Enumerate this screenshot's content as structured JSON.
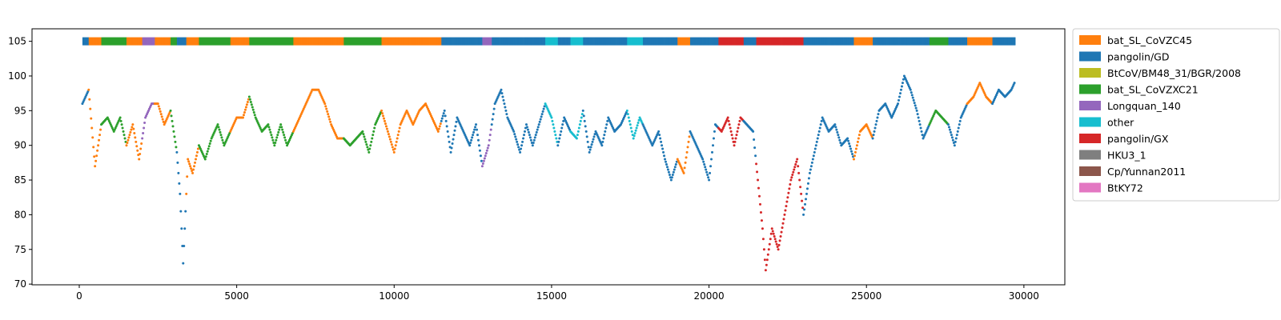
{
  "chart_data": {
    "type": "scatter",
    "title": "",
    "xlabel": "",
    "ylabel": "",
    "xlim": [
      -1500,
      31300
    ],
    "ylim": [
      69.9,
      106.8
    ],
    "xticks": [
      0,
      5000,
      10000,
      15000,
      20000,
      25000,
      30000
    ],
    "yticks": [
      70,
      75,
      80,
      85,
      90,
      95,
      100,
      105
    ],
    "grid": false,
    "legend_position": "outside-right",
    "annotation_bar_y": 105,
    "series": [
      {
        "name": "bat_SL_CoVZC45",
        "color": "#ff7f0e"
      },
      {
        "name": "pangolin/GD",
        "color": "#1f77b4"
      },
      {
        "name": "BtCoV/BM48_31/BGR/2008",
        "color": "#bcbd22"
      },
      {
        "name": "bat_SL_CoVZXC21",
        "color": "#2ca02c"
      },
      {
        "name": "Longquan_140",
        "color": "#9467bd"
      },
      {
        "name": "other",
        "color": "#17becf"
      },
      {
        "name": "pangolin/GX",
        "color": "#d62728"
      },
      {
        "name": "HKU3_1",
        "color": "#7f7f7f"
      },
      {
        "name": "Cp/Yunnan2011",
        "color": "#8c564b"
      },
      {
        "name": "BtKY72",
        "color": "#e377c2"
      }
    ],
    "profile": [
      [
        100,
        96
      ],
      [
        300,
        98
      ],
      [
        500,
        87
      ],
      [
        700,
        93
      ],
      [
        900,
        94
      ],
      [
        1100,
        92
      ],
      [
        1300,
        94
      ],
      [
        1500,
        90
      ],
      [
        1700,
        93
      ],
      [
        1900,
        88
      ],
      [
        2100,
        94
      ],
      [
        2300,
        96
      ],
      [
        2500,
        96
      ],
      [
        2700,
        93
      ],
      [
        2900,
        95
      ],
      [
        3100,
        89
      ],
      [
        3200,
        83
      ],
      [
        3300,
        73
      ],
      [
        3450,
        88
      ],
      [
        3600,
        86
      ],
      [
        3800,
        90
      ],
      [
        4000,
        88
      ],
      [
        4200,
        91
      ],
      [
        4400,
        93
      ],
      [
        4600,
        90
      ],
      [
        4800,
        92
      ],
      [
        5000,
        94
      ],
      [
        5200,
        94
      ],
      [
        5400,
        97
      ],
      [
        5600,
        94
      ],
      [
        5800,
        92
      ],
      [
        6000,
        93
      ],
      [
        6200,
        90
      ],
      [
        6400,
        93
      ],
      [
        6600,
        90
      ],
      [
        6800,
        92
      ],
      [
        7000,
        94
      ],
      [
        7200,
        96
      ],
      [
        7400,
        98
      ],
      [
        7600,
        98
      ],
      [
        7800,
        96
      ],
      [
        8000,
        93
      ],
      [
        8200,
        91
      ],
      [
        8400,
        91
      ],
      [
        8600,
        90
      ],
      [
        8800,
        91
      ],
      [
        9000,
        92
      ],
      [
        9200,
        89
      ],
      [
        9400,
        93
      ],
      [
        9600,
        95
      ],
      [
        9800,
        92
      ],
      [
        10000,
        89
      ],
      [
        10200,
        93
      ],
      [
        10400,
        95
      ],
      [
        10600,
        93
      ],
      [
        10800,
        95
      ],
      [
        11000,
        96
      ],
      [
        11200,
        94
      ],
      [
        11400,
        92
      ],
      [
        11600,
        95
      ],
      [
        11800,
        89
      ],
      [
        12000,
        94
      ],
      [
        12200,
        92
      ],
      [
        12400,
        90
      ],
      [
        12600,
        93
      ],
      [
        12800,
        87
      ],
      [
        13000,
        90
      ],
      [
        13200,
        96
      ],
      [
        13400,
        98
      ],
      [
        13600,
        94
      ],
      [
        13800,
        92
      ],
      [
        14000,
        89
      ],
      [
        14200,
        93
      ],
      [
        14400,
        90
      ],
      [
        14600,
        93
      ],
      [
        14800,
        96
      ],
      [
        15000,
        94
      ],
      [
        15200,
        90
      ],
      [
        15400,
        94
      ],
      [
        15600,
        92
      ],
      [
        15800,
        91
      ],
      [
        16000,
        95
      ],
      [
        16200,
        89
      ],
      [
        16400,
        92
      ],
      [
        16600,
        90
      ],
      [
        16800,
        94
      ],
      [
        17000,
        92
      ],
      [
        17200,
        93
      ],
      [
        17400,
        95
      ],
      [
        17600,
        91
      ],
      [
        17800,
        94
      ],
      [
        18000,
        92
      ],
      [
        18200,
        90
      ],
      [
        18400,
        92
      ],
      [
        18600,
        88
      ],
      [
        18800,
        85
      ],
      [
        19000,
        88
      ],
      [
        19200,
        86
      ],
      [
        19400,
        92
      ],
      [
        19600,
        90
      ],
      [
        19800,
        88
      ],
      [
        20000,
        85
      ],
      [
        20200,
        93
      ],
      [
        20400,
        92
      ],
      [
        20600,
        94
      ],
      [
        20800,
        90
      ],
      [
        21000,
        94
      ],
      [
        21200,
        93
      ],
      [
        21400,
        92
      ],
      [
        21700,
        78
      ],
      [
        21800,
        72
      ],
      [
        22000,
        78
      ],
      [
        22200,
        75
      ],
      [
        22400,
        80
      ],
      [
        22600,
        85
      ],
      [
        22800,
        88
      ],
      [
        23000,
        80
      ],
      [
        23200,
        86
      ],
      [
        23400,
        90
      ],
      [
        23600,
        94
      ],
      [
        23800,
        92
      ],
      [
        24000,
        93
      ],
      [
        24200,
        90
      ],
      [
        24400,
        91
      ],
      [
        24600,
        88
      ],
      [
        24800,
        92
      ],
      [
        25000,
        93
      ],
      [
        25200,
        91
      ],
      [
        25400,
        95
      ],
      [
        25600,
        96
      ],
      [
        25800,
        94
      ],
      [
        26000,
        96
      ],
      [
        26200,
        100
      ],
      [
        26400,
        98
      ],
      [
        26600,
        95
      ],
      [
        26800,
        91
      ],
      [
        27000,
        93
      ],
      [
        27200,
        95
      ],
      [
        27400,
        94
      ],
      [
        27600,
        93
      ],
      [
        27800,
        90
      ],
      [
        28000,
        94
      ],
      [
        28200,
        96
      ],
      [
        28400,
        97
      ],
      [
        28600,
        99
      ],
      [
        28800,
        97
      ],
      [
        29000,
        96
      ],
      [
        29200,
        98
      ],
      [
        29400,
        97
      ],
      [
        29600,
        98
      ],
      [
        29700,
        99
      ]
    ],
    "segments": [
      [
        0,
        300,
        "pangolin/GD"
      ],
      [
        300,
        700,
        "bat_SL_CoVZC45"
      ],
      [
        700,
        1500,
        "bat_SL_CoVZXC21"
      ],
      [
        1500,
        2000,
        "bat_SL_CoVZC45"
      ],
      [
        2000,
        2400,
        "Longquan_140"
      ],
      [
        2400,
        2900,
        "bat_SL_CoVZC45"
      ],
      [
        2900,
        3100,
        "bat_SL_CoVZXC21"
      ],
      [
        3100,
        3400,
        "pangolin/GD"
      ],
      [
        3400,
        3800,
        "bat_SL_CoVZC45"
      ],
      [
        3800,
        4800,
        "bat_SL_CoVZXC21"
      ],
      [
        4800,
        5400,
        "bat_SL_CoVZC45"
      ],
      [
        5400,
        6800,
        "bat_SL_CoVZXC21"
      ],
      [
        6800,
        8400,
        "bat_SL_CoVZC45"
      ],
      [
        8400,
        9600,
        "bat_SL_CoVZXC21"
      ],
      [
        9600,
        10400,
        "bat_SL_CoVZC45"
      ],
      [
        10400,
        11500,
        "bat_SL_CoVZC45"
      ],
      [
        11500,
        12800,
        "pangolin/GD"
      ],
      [
        12800,
        13100,
        "Longquan_140"
      ],
      [
        13100,
        14800,
        "pangolin/GD"
      ],
      [
        14800,
        15200,
        "other"
      ],
      [
        15200,
        15600,
        "pangolin/GD"
      ],
      [
        15600,
        16000,
        "other"
      ],
      [
        16000,
        17400,
        "pangolin/GD"
      ],
      [
        17400,
        17900,
        "other"
      ],
      [
        17900,
        19000,
        "pangolin/GD"
      ],
      [
        19000,
        19400,
        "bat_SL_CoVZC45"
      ],
      [
        19400,
        20300,
        "pangolin/GD"
      ],
      [
        20300,
        21100,
        "pangolin/GX"
      ],
      [
        21100,
        21500,
        "pangolin/GD"
      ],
      [
        21500,
        23000,
        "pangolin/GX"
      ],
      [
        23000,
        24600,
        "pangolin/GD"
      ],
      [
        24600,
        25200,
        "bat_SL_CoVZC45"
      ],
      [
        25200,
        27000,
        "pangolin/GD"
      ],
      [
        27000,
        27600,
        "bat_SL_CoVZXC21"
      ],
      [
        27600,
        28200,
        "pangolin/GD"
      ],
      [
        28200,
        29000,
        "bat_SL_CoVZC45"
      ],
      [
        29000,
        29700,
        "pangolin/GD"
      ]
    ]
  }
}
